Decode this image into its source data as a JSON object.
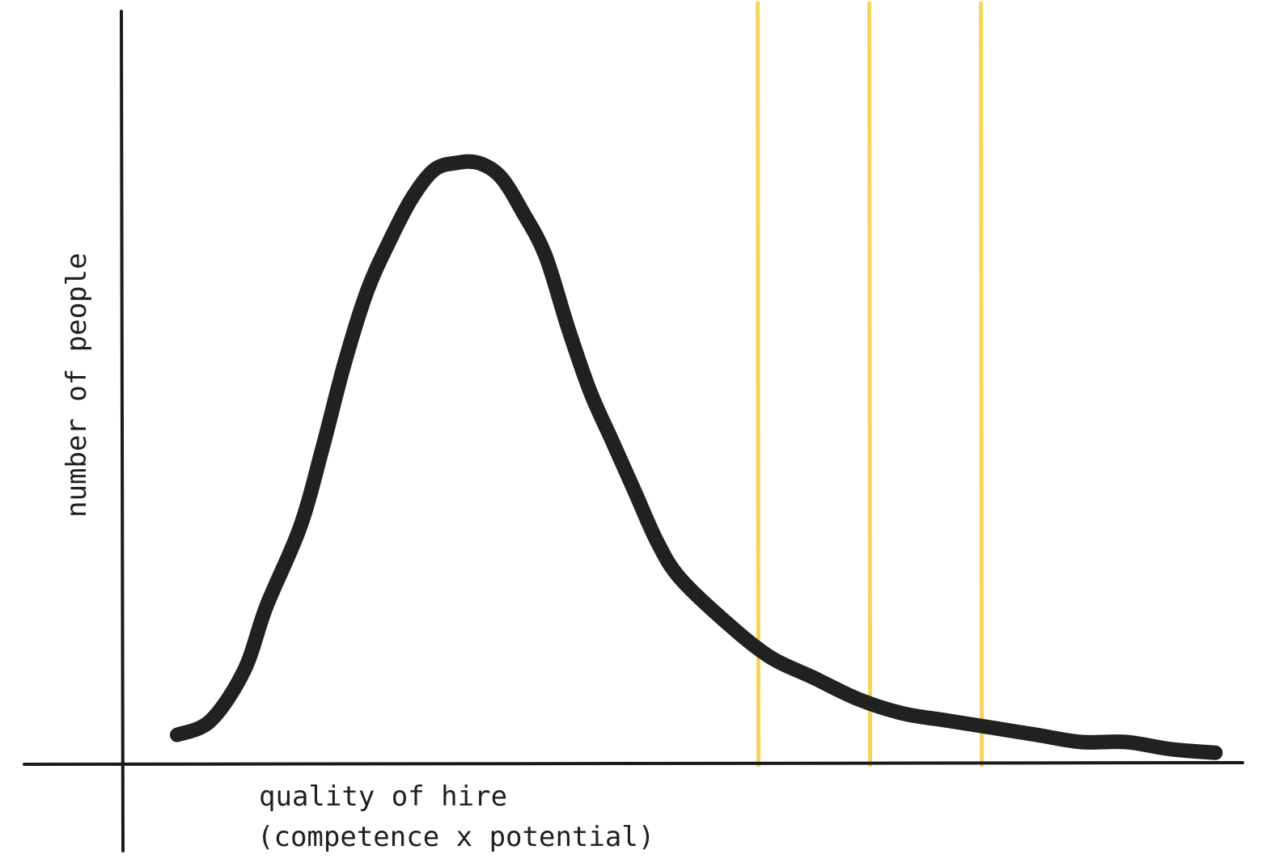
{
  "chart_data": {
    "type": "line",
    "title": "",
    "xlabel": "quality of hire",
    "xlabel_line2": "(competence x potential)",
    "ylabel": "number of people",
    "xlim": [
      0,
      100
    ],
    "ylim": [
      0,
      100
    ],
    "grid": false,
    "ticks": false,
    "series": [
      {
        "curve_color": "#212121",
        "x": [
          5,
          8,
          11,
          13,
          16,
          18,
          20,
          22,
          24,
          26,
          28,
          30,
          32,
          34,
          36,
          38,
          40,
          42,
          44,
          46,
          48,
          50,
          54,
          58,
          62,
          66,
          70,
          74,
          78,
          82,
          86,
          90,
          94,
          98
        ],
        "y": [
          4,
          6,
          13,
          22,
          33,
          44,
          56,
          66,
          73,
          79,
          83,
          84,
          84,
          82,
          77,
          71,
          61,
          52,
          45,
          38,
          31,
          26,
          20,
          15,
          12,
          9,
          7,
          6,
          5,
          4,
          3,
          3,
          2,
          1.5
        ]
      }
    ],
    "markers": {
      "color": "#f5d45a",
      "x": [
        57,
        67,
        77
      ]
    }
  }
}
